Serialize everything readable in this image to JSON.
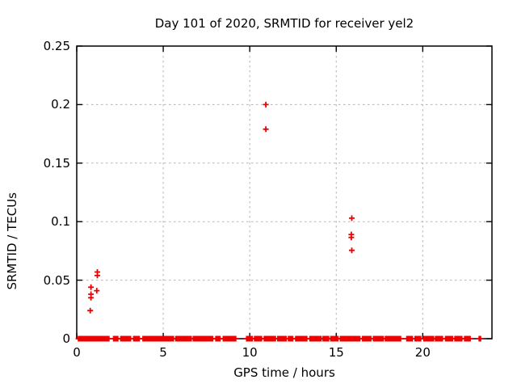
{
  "chart_data": {
    "type": "scatter",
    "title": "Day 101 of 2020, SRMTID for receiver yel2",
    "xlabel": "GPS time / hours",
    "ylabel": "SRMTID / TECUs",
    "xlim": [
      0,
      24
    ],
    "ylim": [
      0,
      0.25
    ],
    "xticks": {
      "values": [
        0,
        5,
        10,
        15,
        20
      ],
      "labels": [
        "0",
        "5",
        "10",
        "15",
        "20"
      ]
    },
    "yticks": {
      "values": [
        0,
        0.05,
        0.1,
        0.15,
        0.2,
        0.25
      ],
      "labels": [
        "0",
        "0.05",
        "0.1",
        "0.15",
        "0.2",
        "0.25"
      ]
    },
    "grid": "dashed-gray",
    "grid_color": "#b3b3b3",
    "border_color": "#000000",
    "marker": "plus",
    "marker_color": "#ee0000",
    "points": [
      [
        0.78,
        0.024
      ],
      [
        0.82,
        0.044
      ],
      [
        0.82,
        0.038
      ],
      [
        0.82,
        0.035
      ],
      [
        1.16,
        0.041
      ],
      [
        1.19,
        0.057
      ],
      [
        1.19,
        0.054
      ],
      [
        10.93,
        0.2
      ],
      [
        10.93,
        0.179
      ],
      [
        15.87,
        0.089
      ],
      [
        15.87,
        0.0865
      ],
      [
        15.9,
        0.103
      ],
      [
        15.9,
        0.0755
      ]
    ],
    "baseline": {
      "y": 0,
      "spacing_hours": 0.08,
      "segments": [
        [
          0.1,
          1.93
        ],
        [
          2.13,
          2.42
        ],
        [
          2.55,
          3.13
        ],
        [
          3.29,
          3.67
        ],
        [
          3.83,
          5.59
        ],
        [
          5.73,
          6.62
        ],
        [
          6.74,
          7.92
        ],
        [
          8.04,
          8.35
        ],
        [
          8.47,
          9.2
        ],
        [
          9.82,
          10.16
        ],
        [
          10.28,
          10.72
        ],
        [
          10.84,
          11.5
        ],
        [
          11.62,
          12.12
        ],
        [
          12.24,
          12.54
        ],
        [
          12.66,
          13.32
        ],
        [
          13.48,
          14.12
        ],
        [
          14.24,
          14.57
        ],
        [
          14.69,
          15.12
        ],
        [
          15.24,
          16.36
        ],
        [
          16.52,
          17.0
        ],
        [
          17.15,
          17.72
        ],
        [
          17.84,
          18.77
        ],
        [
          19.08,
          19.46
        ],
        [
          19.56,
          19.92
        ],
        [
          20.06,
          20.62
        ],
        [
          20.74,
          21.16
        ],
        [
          21.32,
          21.72
        ],
        [
          21.86,
          22.26
        ],
        [
          22.42,
          22.74
        ],
        [
          23.26,
          23.34
        ]
      ]
    }
  }
}
